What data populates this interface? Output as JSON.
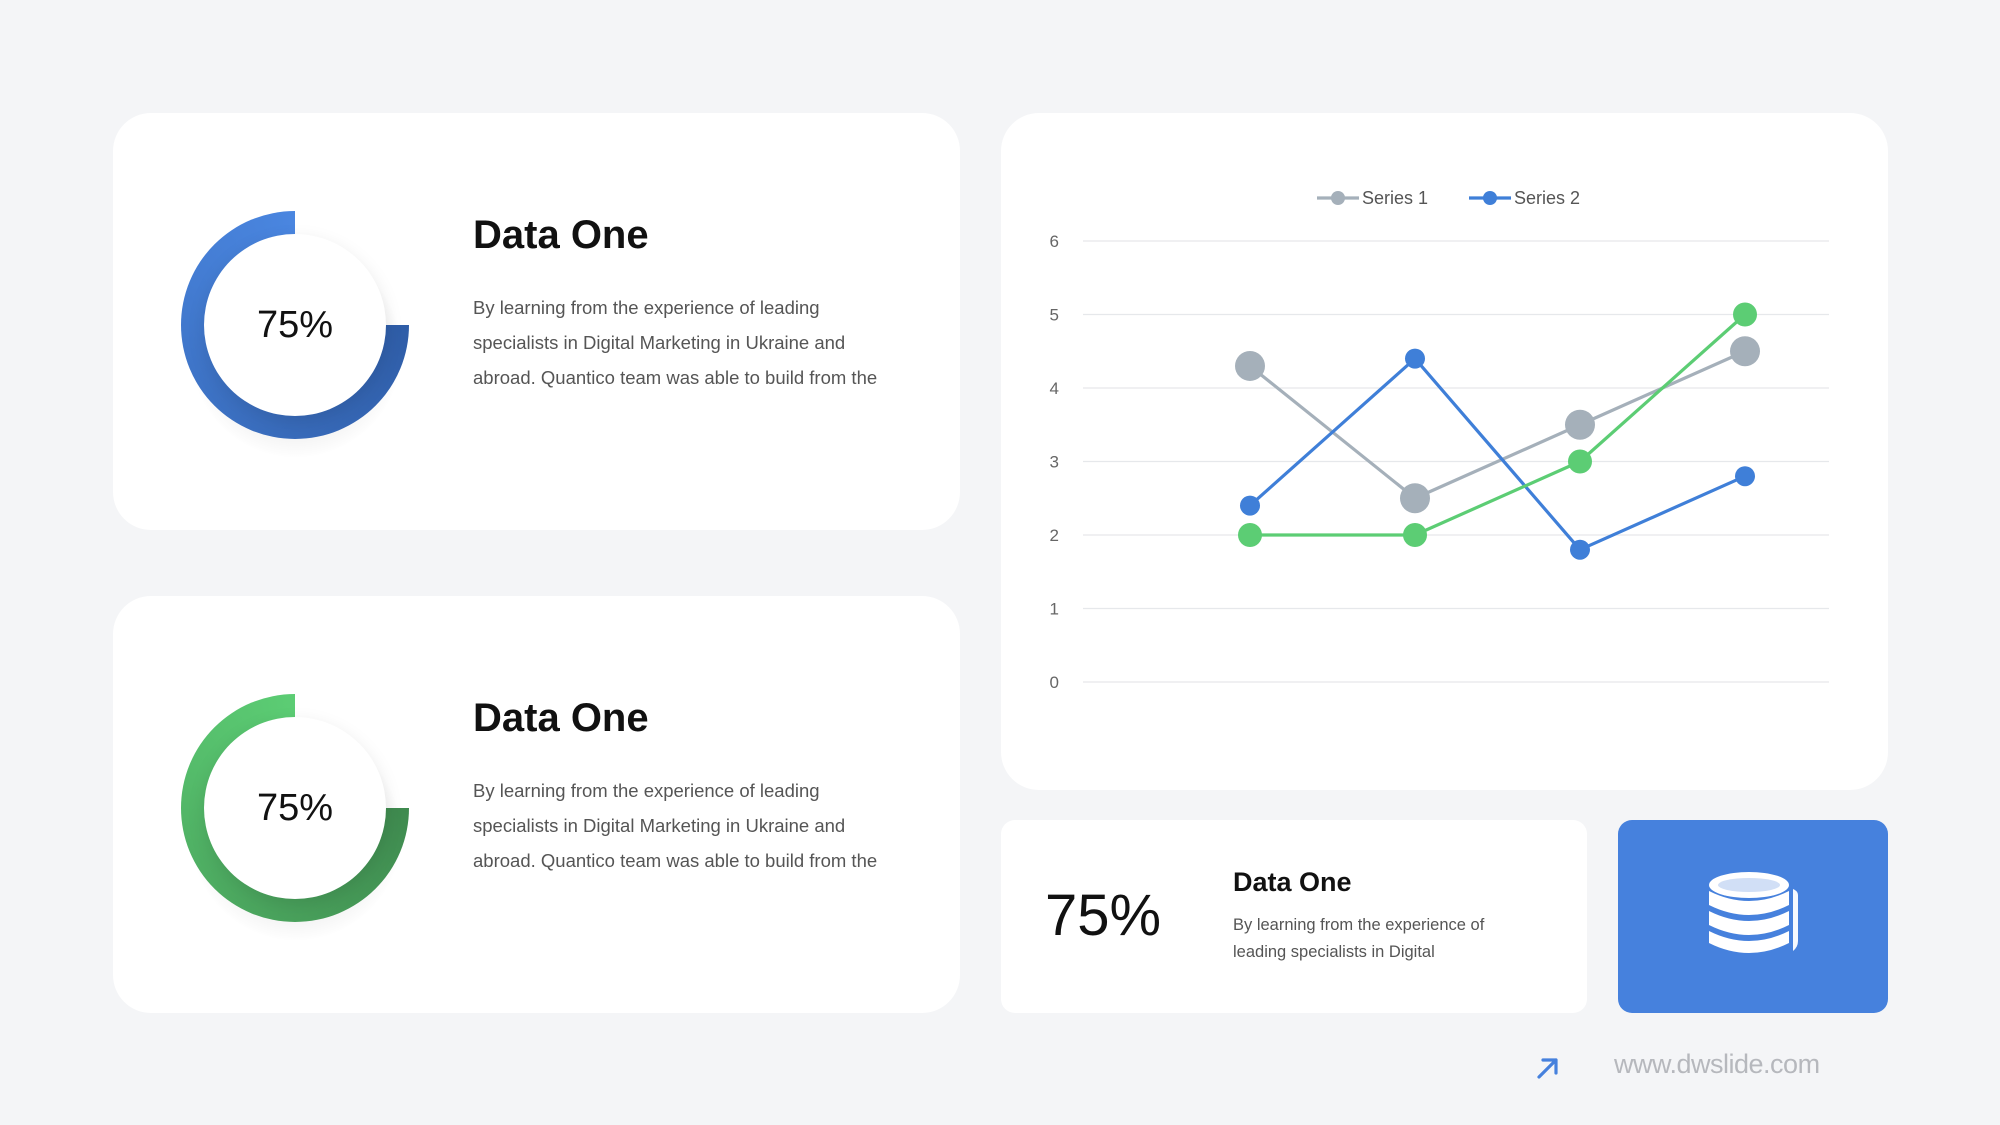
{
  "cards": [
    {
      "percent": "75%",
      "value": 0.75,
      "title": "Data One",
      "text": "By learning from the experience of leading specialists in Digital Marketing in Ukraine and abroad. Quantico team was able to build from the",
      "color_light": "#4a86e0",
      "color_dark": "#2f5da7"
    },
    {
      "percent": "75%",
      "value": 0.75,
      "title": "Data One",
      "text": "By learning from the experience of leading specialists in Digital Marketing in Ukraine and abroad. Quantico team was able to build from the",
      "color_light": "#5ccd74",
      "color_dark": "#3f8a4f"
    }
  ],
  "stat": {
    "value": "75%",
    "title": "Data One",
    "text": "By learning from the experience of leading specialists in Digital"
  },
  "icon_box": {
    "icon": "database-icon",
    "color": "#4681dd"
  },
  "footer": {
    "url": "www.dwslide.com",
    "icon": "arrow-up-right-icon",
    "accent": "#4681dd"
  },
  "chart_data": {
    "type": "line",
    "x": [
      1,
      2,
      3,
      4
    ],
    "ylim": [
      0,
      6
    ],
    "y_ticks": [
      "0",
      "1",
      "2",
      "3",
      "4",
      "5",
      "6"
    ],
    "grid": true,
    "legend_position": "top",
    "series": [
      {
        "name": "Series 1",
        "values": [
          4.3,
          2.5,
          3.5,
          4.5
        ],
        "color": "#a5b0ba",
        "in_legend": true
      },
      {
        "name": "Series 2",
        "values": [
          2.4,
          4.4,
          1.8,
          2.8
        ],
        "color": "#3f7fd8",
        "in_legend": true
      },
      {
        "name": "",
        "values": [
          2.0,
          2.0,
          3.0,
          5.0
        ],
        "color": "#5ccd74",
        "in_legend": false
      }
    ]
  }
}
